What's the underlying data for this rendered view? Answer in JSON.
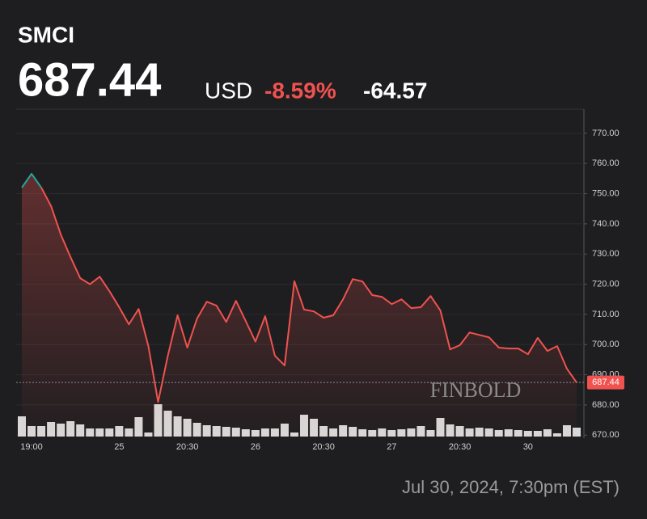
{
  "chart_data": {
    "type": "line",
    "title": "SMCI",
    "currency": "USD",
    "change_percent": "-8.59%",
    "change": "-64.57",
    "timestamp": "Jul 30, 2024, 7:30pm (EST)",
    "watermark": "FINBOLD",
    "color": "#f0524f",
    "up_color": "#26a69a",
    "volume_color": "#d9d9d9",
    "grid": true,
    "categories": [
      null,
      "19:00",
      null,
      null,
      null,
      null,
      null,
      null,
      null,
      null,
      "25",
      null,
      null,
      null,
      null,
      null,
      null,
      "20:30",
      null,
      null,
      null,
      null,
      null,
      null,
      "26",
      null,
      null,
      null,
      null,
      null,
      null,
      "20:30",
      null,
      null,
      null,
      null,
      null,
      null,
      "27",
      null,
      null,
      null,
      null,
      null,
      null,
      "20:30",
      null,
      null,
      null,
      null,
      null,
      null,
      "30",
      null,
      null,
      null,
      null,
      null
    ],
    "values": [
      752,
      756.6,
      752,
      745.9,
      736.5,
      729,
      722,
      720,
      722.5,
      717.7,
      712.4,
      706.7,
      711.8,
      699.5,
      681,
      696.3,
      709.7,
      699,
      708.6,
      714.2,
      712.9,
      707.5,
      714.5,
      707.8,
      701,
      709.4,
      696.3,
      693.1,
      721,
      711.6,
      711,
      708.9,
      709.7,
      715,
      721.7,
      720.9,
      716.4,
      715.8,
      713.4,
      715,
      712.1,
      712.4,
      716.1,
      711.3,
      698.4,
      699.8,
      704,
      703.2,
      702.4,
      699,
      698.7,
      698.7,
      696.8,
      702.2,
      697.9,
      699.5,
      692,
      687.44
    ],
    "volume": [
      25,
      13,
      13,
      18,
      16,
      19,
      15,
      10,
      10,
      10,
      13,
      10,
      24,
      5,
      40,
      32,
      25,
      22,
      17,
      14,
      13,
      12,
      11,
      9,
      8,
      10,
      10,
      16,
      5,
      27,
      22,
      13,
      10,
      14,
      12,
      9,
      8,
      10,
      8,
      9,
      10,
      13,
      8,
      23,
      15,
      13,
      10,
      11,
      10,
      8,
      9,
      8,
      7,
      7,
      9,
      4,
      14,
      11
    ],
    "ylim": [
      669,
      778
    ],
    "yticks": [
      {
        "value": 670,
        "label": "670.00"
      },
      {
        "value": 680,
        "label": "680.00"
      },
      {
        "value": 690,
        "label": "690.00"
      },
      {
        "value": 700,
        "label": "700.00"
      },
      {
        "value": 710,
        "label": "710.00"
      },
      {
        "value": 720,
        "label": "720.00"
      },
      {
        "value": 730,
        "label": "730.00"
      },
      {
        "value": 740,
        "label": "740.00"
      },
      {
        "value": 750,
        "label": "750.00"
      },
      {
        "value": 760,
        "label": "760.00"
      },
      {
        "value": 770,
        "label": "770.00"
      }
    ]
  }
}
